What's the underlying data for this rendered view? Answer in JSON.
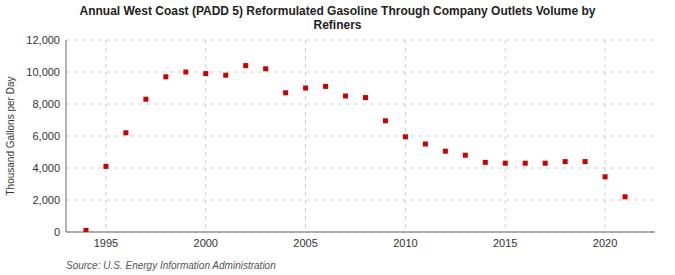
{
  "chart_data": {
    "type": "scatter",
    "title": "Annual West Coast (PADD 5) Reformulated Gasoline Through Company Outlets Volume by\nRefiners",
    "ylabel": "Thousand Gallons per Day",
    "source": "Source: U.S. Energy Information Administration",
    "x": [
      1994,
      1995,
      1996,
      1997,
      1998,
      1999,
      2000,
      2001,
      2002,
      2003,
      2004,
      2005,
      2006,
      2007,
      2008,
      2009,
      2010,
      2011,
      2012,
      2013,
      2014,
      2015,
      2016,
      2017,
      2018,
      2019,
      2020,
      2021
    ],
    "values": [
      100,
      4100,
      6200,
      8300,
      9700,
      10000,
      9900,
      9800,
      10400,
      10200,
      8700,
      9000,
      9100,
      8500,
      8400,
      6950,
      5950,
      5500,
      5050,
      4800,
      4350,
      4300,
      4300,
      4300,
      4400,
      4400,
      3450,
      2200
    ],
    "color": "#cc0000",
    "marker": "square",
    "xlim": [
      1993.0,
      2022.5
    ],
    "ylim": [
      0,
      12000
    ],
    "xticks": [
      1995,
      2000,
      2005,
      2010,
      2015,
      2020
    ],
    "yticks": [
      0,
      {
        "value": 2000,
        "label": "2,000"
      },
      {
        "value": 4000,
        "label": "4,000"
      },
      {
        "value": 6000,
        "label": "6,000"
      },
      {
        "value": 8000,
        "label": "8,000"
      },
      {
        "value": 10000,
        "label": "10,000"
      },
      {
        "value": 12000,
        "label": "12,000"
      }
    ],
    "grid": true
  }
}
